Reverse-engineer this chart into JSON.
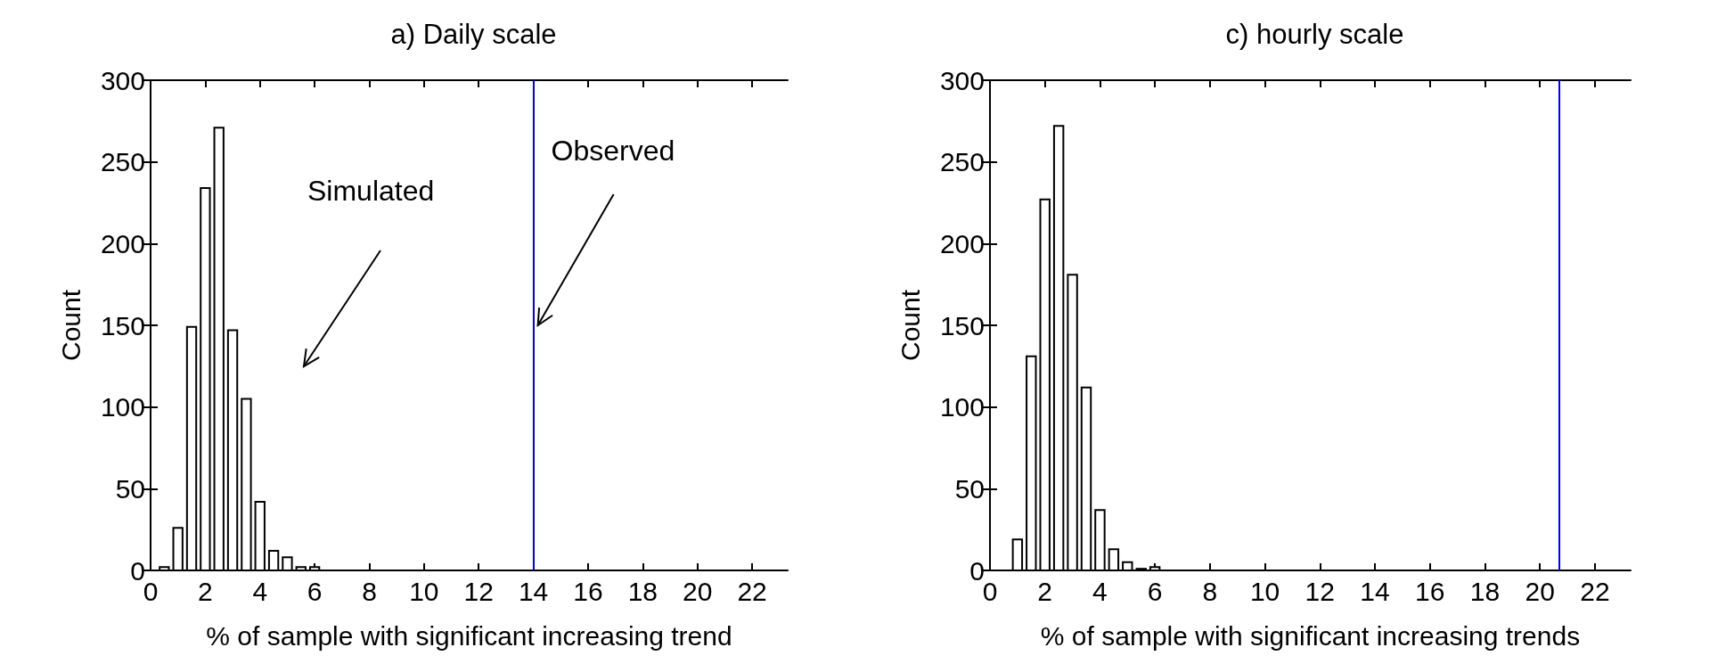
{
  "chart_data": [
    {
      "type": "histogram",
      "title": "a) Daily scale",
      "xlabel": "% of sample with significant increasing trend",
      "ylabel": "Count",
      "bins": [
        0.25,
        0.75,
        1.25,
        1.75,
        2.25,
        2.75,
        3.25,
        3.75,
        4.25,
        4.75,
        5.25,
        5.75,
        6.25
      ],
      "values": [
        2,
        26,
        149,
        234,
        271,
        147,
        105,
        42,
        12,
        8,
        2,
        2
      ],
      "color": "#ffffff",
      "xlim": [
        0,
        23.3
      ],
      "xticks": [
        0,
        2,
        4,
        6,
        8,
        10,
        12,
        14,
        16,
        18,
        20,
        22
      ],
      "ylim": [
        0,
        300
      ],
      "yticks": [
        0,
        50,
        100,
        150,
        200,
        250,
        300
      ],
      "ref_lines": [
        {
          "axis": "x",
          "value": 14,
          "label": "Observed",
          "color": "#0000ff"
        }
      ],
      "annotations": [
        "Simulated"
      ],
      "grid": false
    },
    {
      "type": "histogram",
      "title": "c) hourly scale",
      "xlabel": "% of sample with significant increasing trends",
      "ylabel": "Count",
      "bins": [
        0.25,
        0.75,
        1.25,
        1.75,
        2.25,
        2.75,
        3.25,
        3.75,
        4.25,
        4.75,
        5.25,
        5.75,
        6.25
      ],
      "values": [
        0,
        19,
        131,
        227,
        272,
        181,
        112,
        37,
        13,
        5,
        1,
        2
      ],
      "color": "#ffffff",
      "xlim": [
        0,
        23.3
      ],
      "xticks": [
        0,
        2,
        4,
        6,
        8,
        10,
        12,
        14,
        16,
        18,
        20,
        22
      ],
      "ylim": [
        0,
        300
      ],
      "yticks": [
        0,
        50,
        100,
        150,
        200,
        250,
        300
      ],
      "ref_lines": [
        {
          "axis": "x",
          "value": 20.7,
          "color": "#0000ff"
        }
      ],
      "grid": false
    }
  ]
}
